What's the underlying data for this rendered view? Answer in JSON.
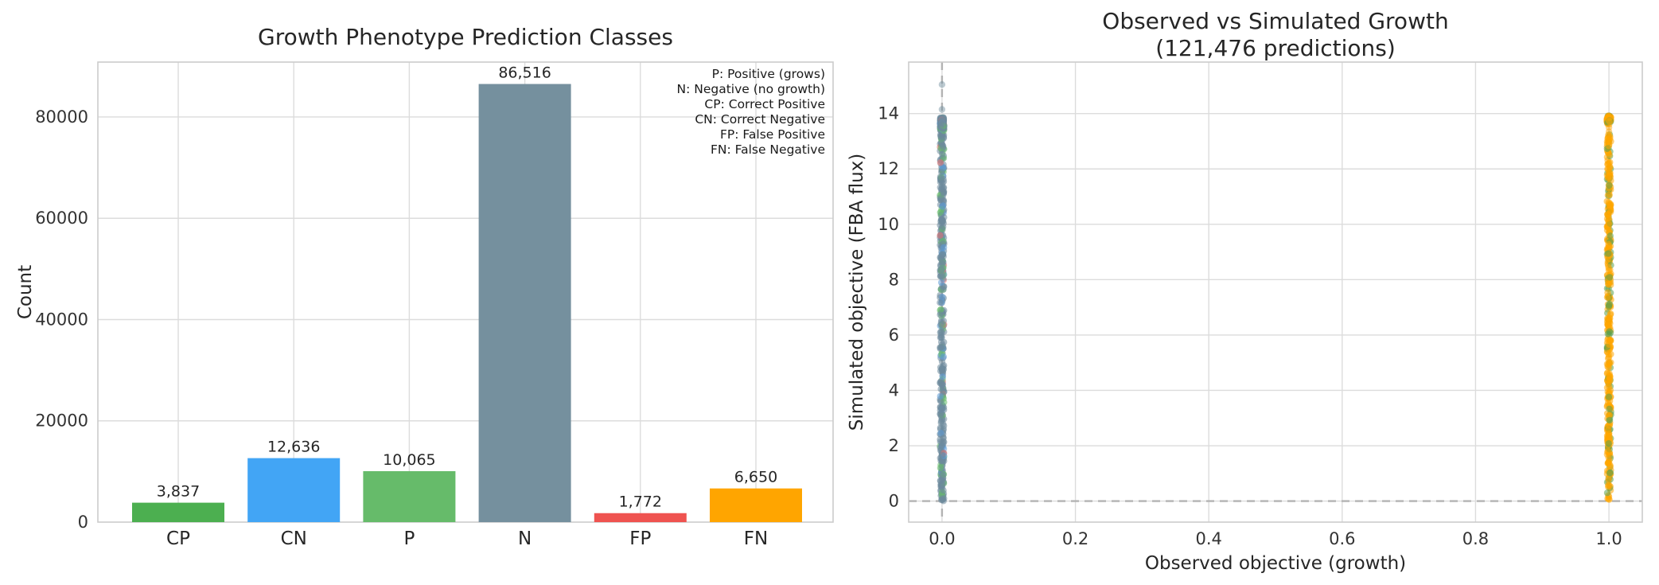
{
  "figure": {
    "background": "#ffffff",
    "text_color": "#262626",
    "grid_color": "#dcdcdc",
    "spine_color": "#cccccc",
    "guide_color": "#b3b3b3"
  },
  "chart_data": [
    {
      "type": "bar",
      "title": "Growth Phenotype Prediction Classes",
      "ylabel": "Count",
      "categories": [
        "CP",
        "CN",
        "P",
        "N",
        "FP",
        "FN"
      ],
      "values": [
        3837,
        12636,
        10065,
        86516,
        1772,
        6650
      ],
      "value_labels": [
        "3,837",
        "12,636",
        "10,065",
        "86,516",
        "1,772",
        "6,650"
      ],
      "bar_colors": [
        "#4caf50",
        "#42a5f5",
        "#66bb6a",
        "#75909e",
        "#ef5350",
        "#ffa500"
      ],
      "yticks": [
        0,
        20000,
        40000,
        60000,
        80000
      ],
      "ytick_labels": [
        "0",
        "20000",
        "40000",
        "60000",
        "80000"
      ],
      "ylim": [
        0,
        90842
      ],
      "grid": true,
      "legend_position": "top-right",
      "annotation_lines": [
        "P: Positive (grows)",
        "N: Negative (no growth)",
        "CP: Correct Positive",
        "CN: Correct Negative",
        "FP: False Positive",
        "FN: False Negative"
      ]
    },
    {
      "type": "scatter",
      "title": "Observed vs Simulated Growth",
      "subtitle": "(121,476 predictions)",
      "xlabel": "Observed objective (growth)",
      "ylabel": "Simulated objective (FBA flux)",
      "xtick_labels": [
        "0.0",
        "0.2",
        "0.4",
        "0.6",
        "0.8",
        "1.0"
      ],
      "xtick_values": [
        0,
        0.2,
        0.4,
        0.6,
        0.8,
        1.0
      ],
      "yticks": [
        0,
        2,
        4,
        6,
        8,
        10,
        12,
        14
      ],
      "xlim": [
        -0.05,
        1.05
      ],
      "ylim": [
        -0.76,
        15.86
      ],
      "grid": true,
      "point_alpha": 0.55,
      "guide_lines": {
        "horizontal_y": 0,
        "vertical_x": 0,
        "style": "dashed",
        "color": "#b3b3b3"
      },
      "columns": [
        {
          "x": 0.0,
          "y_range": [
            0,
            13.3
          ],
          "n_base": 430,
          "top_cluster": {
            "range": [
              13.35,
              13.9
            ],
            "n": 150
          },
          "outliers": [
            14.15,
            15.05
          ],
          "color_mix": [
            {
              "color": "#6d8b9c",
              "w": 0.76
            },
            {
              "color": "#66bb6a",
              "w": 0.12
            },
            {
              "color": "#5c9bd5",
              "w": 0.08
            },
            {
              "color": "#e57373",
              "w": 0.04
            }
          ]
        },
        {
          "x": 1.0,
          "y_range": [
            0,
            13.25
          ],
          "n_base": 400,
          "top_cluster": {
            "range": [
              13.6,
              13.95
            ],
            "n": 90
          },
          "outliers": [
            13.35,
            13.5
          ],
          "color_mix": [
            {
              "color": "#ffa500",
              "w": 0.8
            },
            {
              "color": "#5ba04f",
              "w": 0.2
            }
          ]
        }
      ]
    }
  ]
}
